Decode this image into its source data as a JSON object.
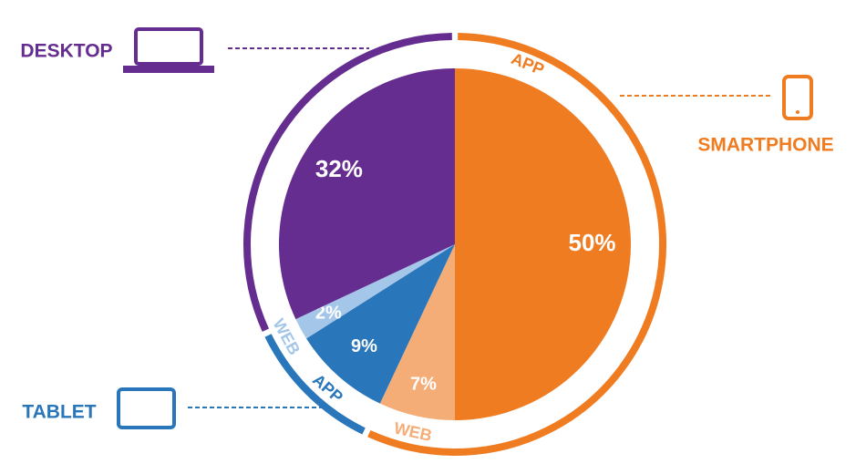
{
  "chart_data": {
    "type": "pie",
    "groups": [
      {
        "name": "SMARTPHONE",
        "color": "#f07c22",
        "slice_labels": [
          "APP",
          "WEB"
        ],
        "values": [
          50,
          7
        ],
        "value_labels": [
          "50%",
          "7%"
        ],
        "colors": [
          "#f07c22",
          "#f5ad78"
        ]
      },
      {
        "name": "TABLET",
        "color": "#2a76bb",
        "slice_labels": [
          "APP",
          "WEB"
        ],
        "values": [
          9,
          2
        ],
        "value_labels": [
          "9%",
          "2%"
        ],
        "colors": [
          "#2a76bb",
          "#a4c6e9"
        ]
      },
      {
        "name": "DESKTOP",
        "color": "#652d8f",
        "values": [
          32
        ],
        "value_labels": [
          "32%"
        ],
        "colors": [
          "#652d8f"
        ]
      }
    ]
  }
}
